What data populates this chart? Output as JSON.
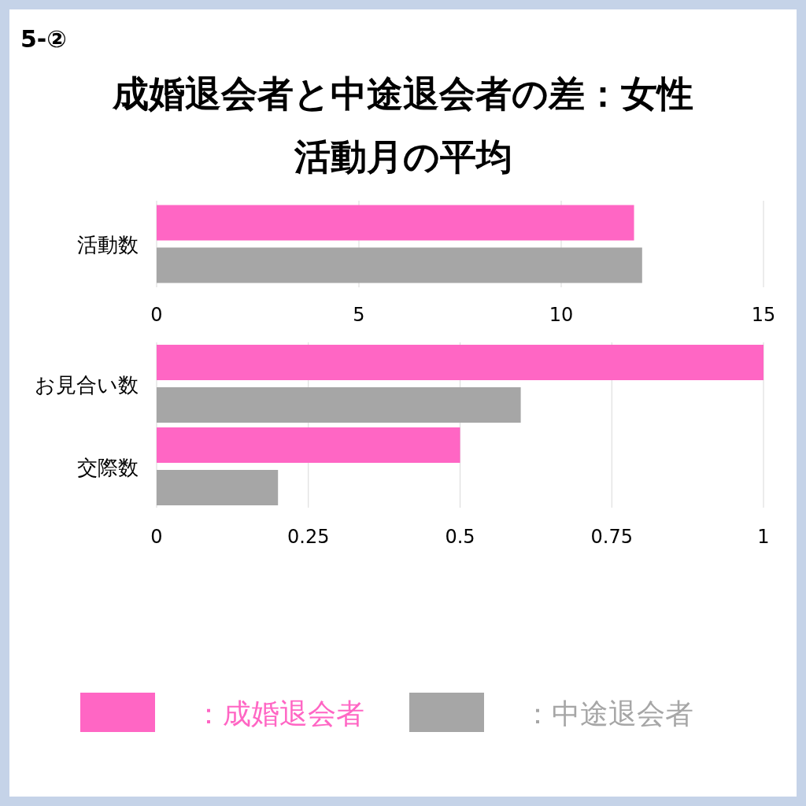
{
  "chart_data": [
    {
      "type": "bar",
      "orientation": "horizontal",
      "title": "成婚退会者と中途退会者の差：女性",
      "subtitle": "活動月の平均",
      "annotations": [
        "5-②"
      ],
      "categories": [
        "活動数"
      ],
      "series": [
        {
          "color": "#ff66c4",
          "values": [
            11.8
          ]
        },
        {
          "color": "#a6a6a6",
          "values": [
            12.0
          ]
        }
      ],
      "xlim": [
        0,
        15
      ],
      "xticks": [
        0,
        5,
        10,
        15
      ],
      "grid": "x"
    },
    {
      "type": "bar",
      "orientation": "horizontal",
      "categories": [
        "お見合い数",
        "交際数"
      ],
      "series": [
        {
          "name": "：成婚退会者",
          "color": "#ff66c4",
          "values": [
            1.0,
            0.5
          ]
        },
        {
          "name": "：中途退会者",
          "color": "#a6a6a6",
          "values": [
            0.6,
            0.2
          ]
        }
      ],
      "xlim": [
        0,
        1
      ],
      "xticks": [
        0,
        0.25,
        0.5,
        0.75,
        1
      ],
      "grid": "x",
      "legend": "bottom"
    }
  ]
}
